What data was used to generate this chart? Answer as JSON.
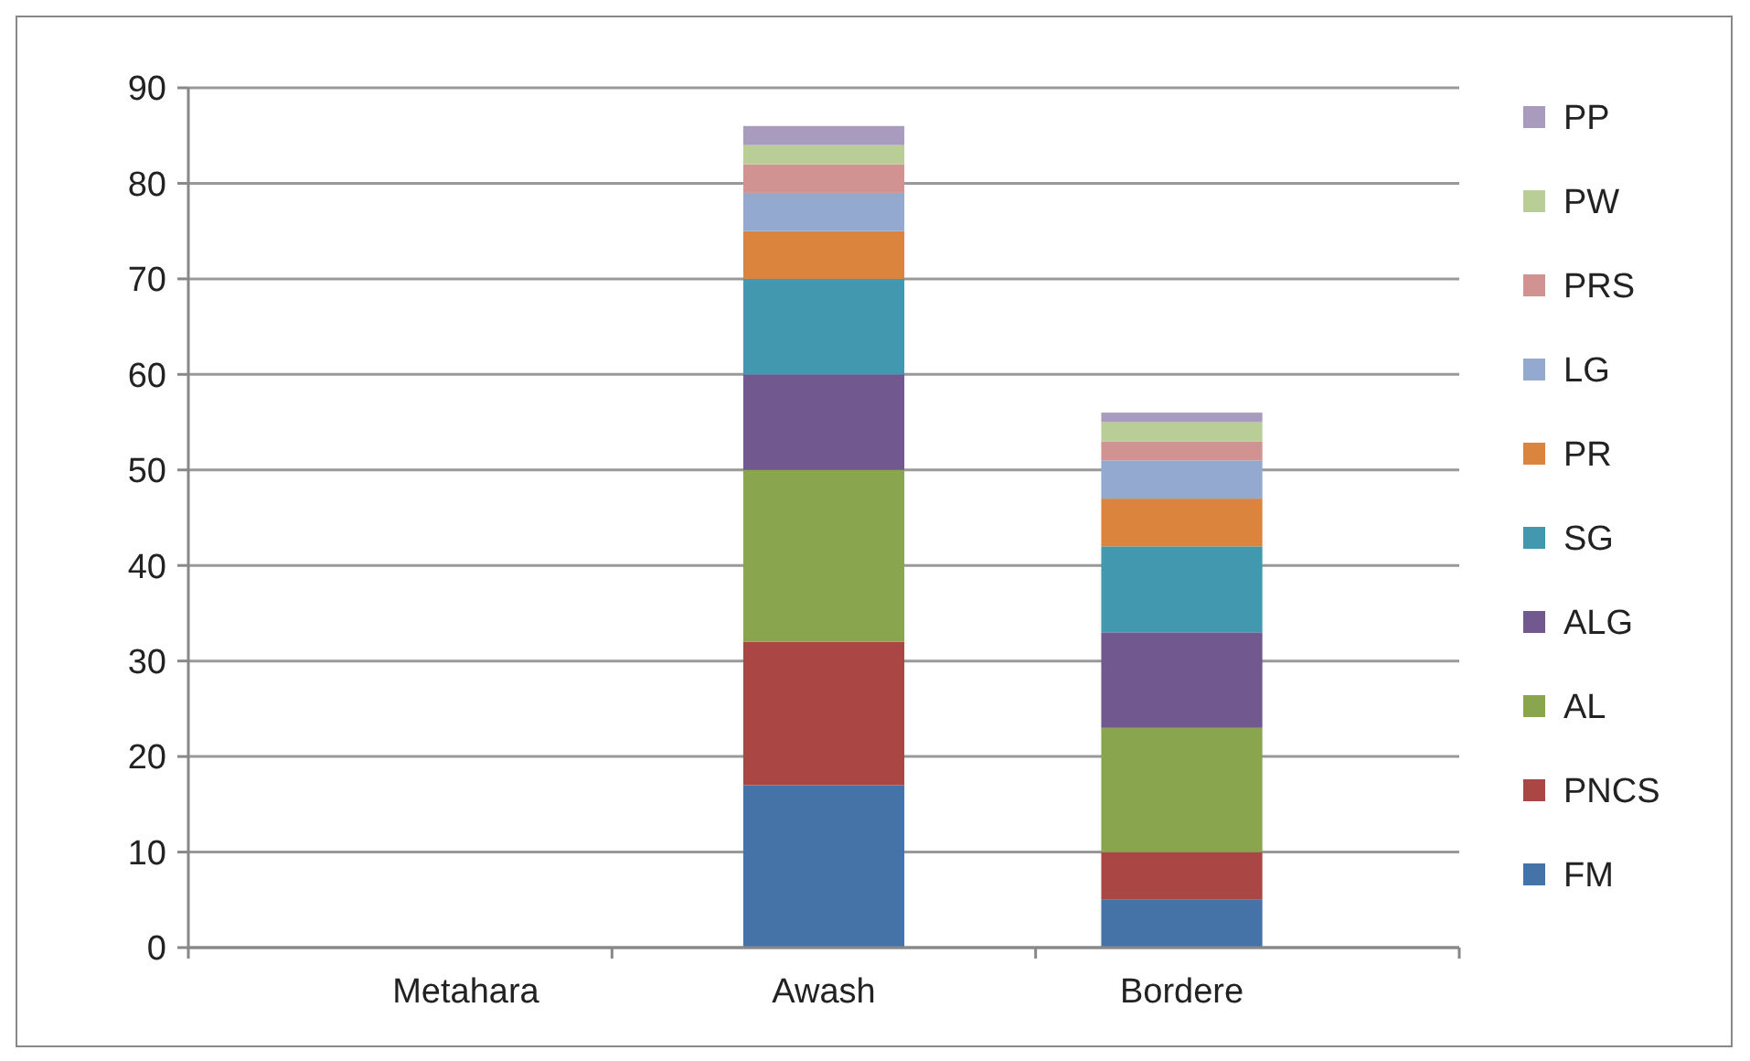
{
  "chart_data": {
    "type": "bar",
    "stacked": true,
    "categories": [
      "Metahara",
      "Awash",
      "Bordere"
    ],
    "series": [
      {
        "name": "FM",
        "color": "#4572a7",
        "values": [
          0,
          17,
          5
        ]
      },
      {
        "name": "PNCS",
        "color": "#aa4643",
        "values": [
          0,
          15,
          5
        ]
      },
      {
        "name": "AL",
        "color": "#89a54e",
        "values": [
          0,
          18,
          13
        ]
      },
      {
        "name": "ALG",
        "color": "#71588f",
        "values": [
          0,
          10,
          10
        ]
      },
      {
        "name": "SG",
        "color": "#4198af",
        "values": [
          0,
          10,
          9
        ]
      },
      {
        "name": "PR",
        "color": "#db843d",
        "values": [
          0,
          5,
          5
        ]
      },
      {
        "name": "LG",
        "color": "#93a9cf",
        "values": [
          0,
          4,
          4
        ]
      },
      {
        "name": "PRS",
        "color": "#d19392",
        "values": [
          0,
          3,
          2
        ]
      },
      {
        "name": "PW",
        "color": "#b9cd96",
        "values": [
          0,
          2,
          2
        ]
      },
      {
        "name": "PP",
        "color": "#a99bbd",
        "values": [
          0,
          2,
          1
        ]
      }
    ],
    "ylim": [
      0,
      90
    ],
    "yticks": [
      0,
      10,
      20,
      30,
      40,
      50,
      60,
      70,
      80,
      90
    ],
    "grid": "y",
    "legend": "right"
  }
}
